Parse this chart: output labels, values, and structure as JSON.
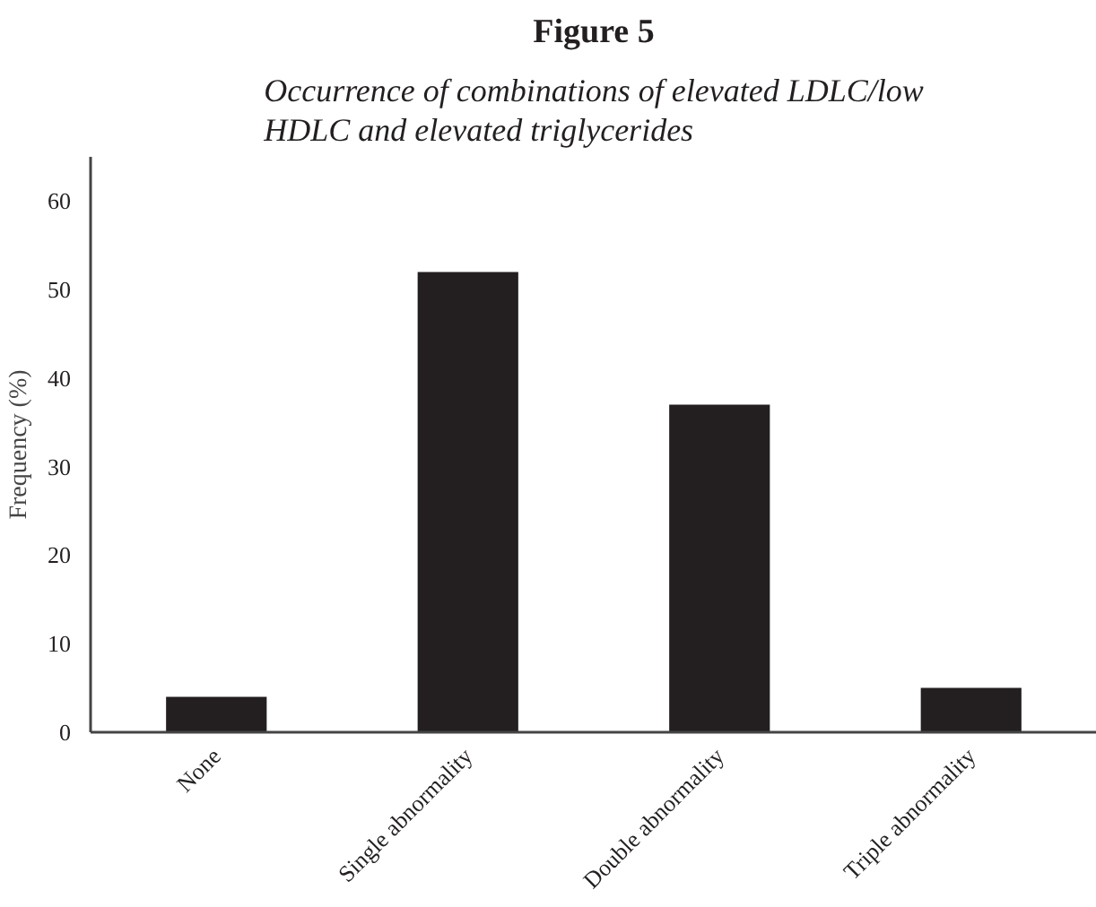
{
  "chart_data": {
    "type": "bar",
    "title": "Figure 5",
    "subtitle": "Occurrence of combinations of elevated LDLC/low\nHDLC and elevated triglycerides",
    "ylabel": "Frequency (%)",
    "categories": [
      "None",
      "Single abnormality",
      "Double abnormality",
      "Triple abnormality"
    ],
    "values": [
      4,
      52,
      37,
      5
    ],
    "color": "#231f20",
    "ylim": [
      0,
      65
    ],
    "yticks": [
      0,
      10,
      20,
      30,
      40,
      50,
      60
    ],
    "grid": false
  }
}
